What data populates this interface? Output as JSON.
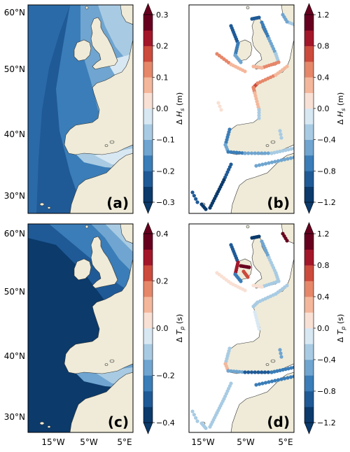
{
  "lat_labels": [
    "60°N",
    "50°N",
    "40°N",
    "30°N"
  ],
  "lon_labels": [
    "15°W",
    "5°W",
    "5°E"
  ],
  "colors": {
    "land": "#efebd8",
    "coast": "#333333",
    "frame": "#000000",
    "blue_scale": [
      "#0b3a6b",
      "#1f5a97",
      "#3a7db8",
      "#6fa5d0",
      "#a8cbe3",
      "#d8e8f3",
      "#ffffff"
    ],
    "red_scale": [
      "#f9e0d4",
      "#f4b79b",
      "#e6876a",
      "#cc4a3c",
      "#a3162a",
      "#67001f"
    ]
  },
  "panels": [
    {
      "id": "a",
      "label": "(a)",
      "variable": "ΔHs",
      "colorbar_label_main": "Δ",
      "colorbar_label_var": "H",
      "colorbar_label_sub": "s",
      "colorbar_label_unit": " (m)",
      "colorbar_ticks": [
        "0.3",
        "0.2",
        "0.1",
        "0.0",
        "−0.1",
        "−0.2",
        "−0.3"
      ]
    },
    {
      "id": "b",
      "label": "(b)",
      "variable": "ΔHs",
      "colorbar_label_main": "Δ",
      "colorbar_label_var": "H",
      "colorbar_label_sub": "s",
      "colorbar_label_unit": " (m)",
      "colorbar_ticks": [
        "1.2",
        "0.8",
        "0.4",
        "0.0",
        "−0.4",
        "−0.8",
        "−1.2"
      ]
    },
    {
      "id": "c",
      "label": "(c)",
      "variable": "ΔTp",
      "colorbar_label_main": "Δ",
      "colorbar_label_var": "T",
      "colorbar_label_sub": "p",
      "colorbar_label_unit": " (s)",
      "colorbar_ticks": [
        "0.4",
        "0.2",
        "0.0",
        "−0.2",
        "−0.4"
      ]
    },
    {
      "id": "d",
      "label": "(d)",
      "variable": "ΔTp",
      "colorbar_label_main": "Δ",
      "colorbar_label_var": "T",
      "colorbar_label_sub": "p",
      "colorbar_label_unit": " (s)",
      "colorbar_ticks": [
        "1.2",
        "0.8",
        "0.4",
        "0.0",
        "−0.4",
        "−0.8",
        "−1.2"
      ]
    }
  ]
}
